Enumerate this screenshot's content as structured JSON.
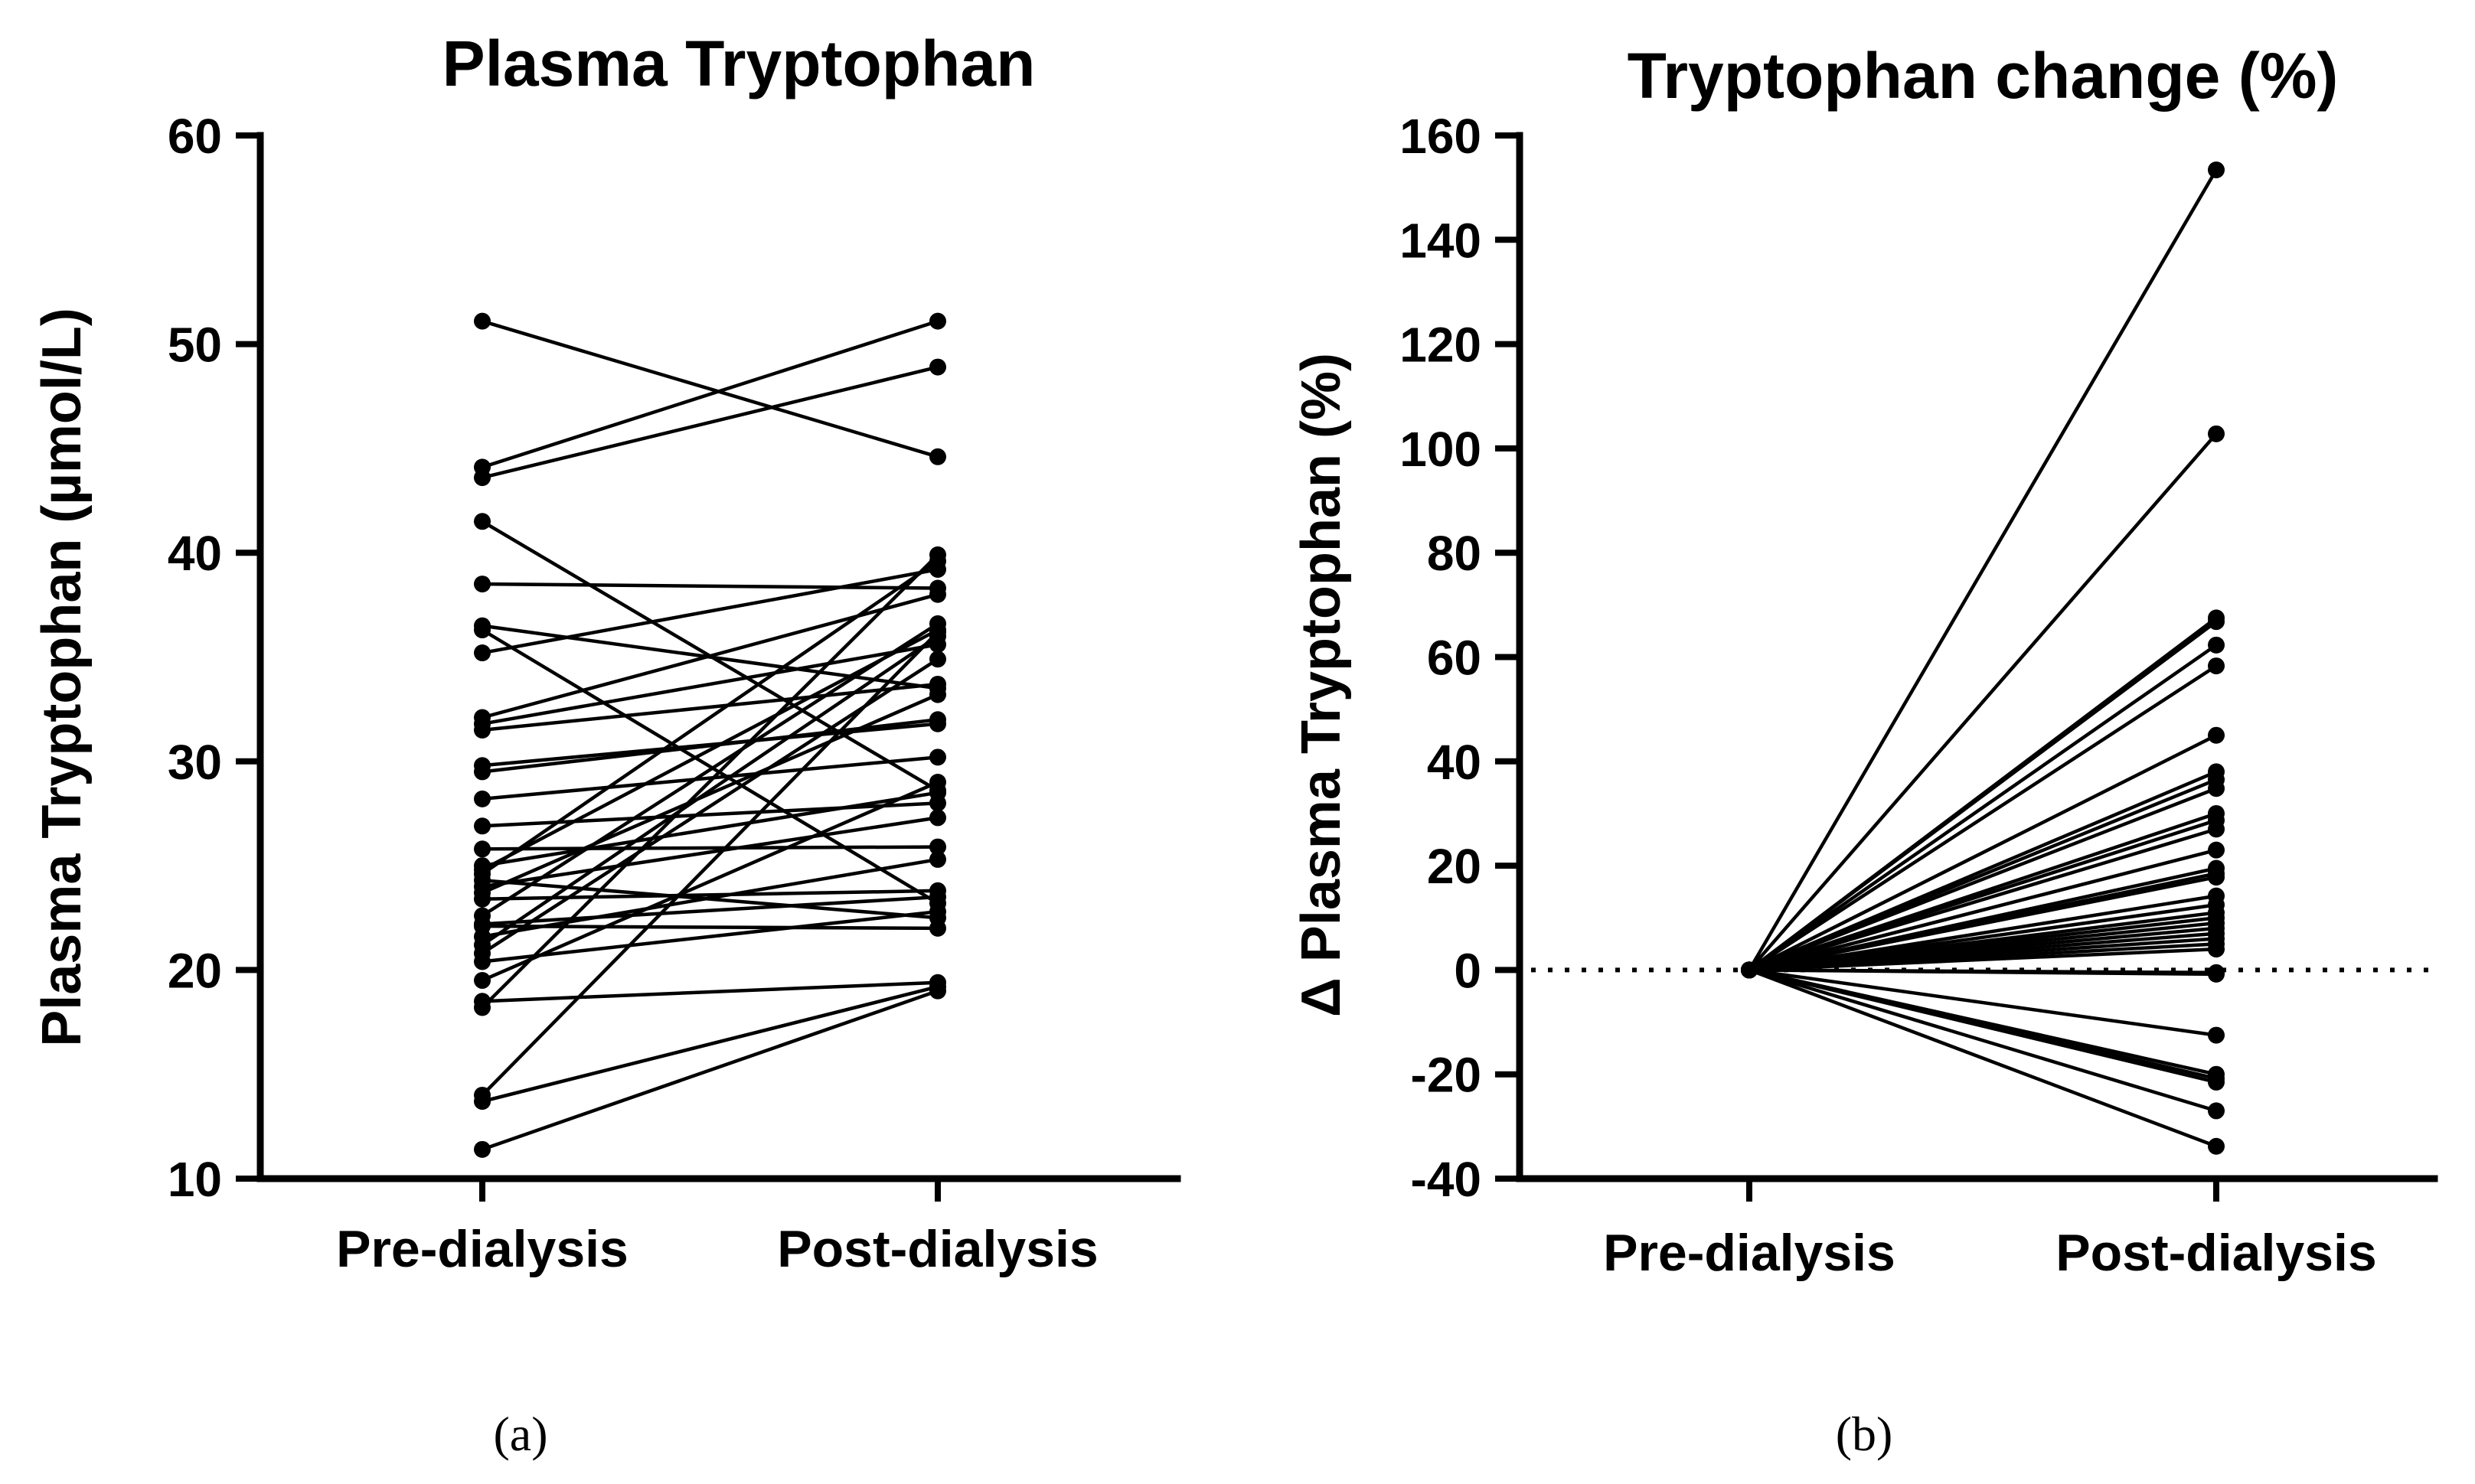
{
  "chart_data": [
    {
      "panel": "a",
      "type": "line",
      "title": "Plasma Tryptophan",
      "xlabel": "",
      "ylabel": "Plasma Tryptophan (µmol/L)",
      "categories": [
        "Pre-dialysis",
        "Post-dialysis"
      ],
      "ylim": [
        10,
        60
      ],
      "yticks": [
        10,
        20,
        30,
        40,
        50,
        60
      ],
      "caption": "(a)",
      "pairs": [
        [
          51.1,
          44.6
        ],
        [
          44.1,
          51.1
        ],
        [
          43.6,
          48.9
        ],
        [
          41.5,
          28.6
        ],
        [
          38.5,
          38.3
        ],
        [
          36.5,
          33.5
        ],
        [
          36.3,
          23.2
        ],
        [
          35.2,
          39.2
        ],
        [
          32.1,
          38.0
        ],
        [
          31.8,
          35.6
        ],
        [
          31.5,
          33.7
        ],
        [
          29.8,
          31.8
        ],
        [
          29.5,
          32.0
        ],
        [
          28.2,
          30.2
        ],
        [
          26.9,
          28.0
        ],
        [
          25.8,
          25.9
        ],
        [
          25.0,
          28.5
        ],
        [
          24.8,
          36.3
        ],
        [
          24.6,
          39.6
        ],
        [
          24.3,
          22.5
        ],
        [
          24.0,
          27.3
        ],
        [
          23.7,
          33.2
        ],
        [
          23.4,
          23.8
        ],
        [
          22.6,
          36.6
        ],
        [
          22.2,
          23.5
        ],
        [
          22.1,
          22.0
        ],
        [
          21.6,
          25.3
        ],
        [
          21.2,
          36.0
        ],
        [
          20.8,
          34.9
        ],
        [
          20.4,
          22.8
        ],
        [
          19.5,
          29.0
        ],
        [
          18.5,
          19.4
        ],
        [
          18.2,
          39.9
        ],
        [
          14.0,
          36.2
        ],
        [
          13.7,
          19.2
        ],
        [
          11.4,
          19.0
        ]
      ]
    },
    {
      "panel": "b",
      "type": "line",
      "title": "Tryptophan change  (%)",
      "xlabel": "",
      "ylabel": "Δ Plasma Tryptophan (%)",
      "categories": [
        "Pre-dialysis",
        "Post-dialysis"
      ],
      "ylim": [
        -40,
        160
      ],
      "yticks": [
        -40,
        -20,
        0,
        20,
        40,
        60,
        80,
        100,
        120,
        140,
        160
      ],
      "reference_line": 0,
      "caption": "(b)",
      "pairs": [
        [
          0,
          153.4
        ],
        [
          0,
          102.8
        ],
        [
          0,
          67.5
        ],
        [
          0,
          66.8
        ],
        [
          0,
          62.3
        ],
        [
          0,
          58.3
        ],
        [
          0,
          45.0
        ],
        [
          0,
          38.0
        ],
        [
          0,
          36.5
        ],
        [
          0,
          34.8
        ],
        [
          0,
          30.0
        ],
        [
          0,
          28.7
        ],
        [
          0,
          27.0
        ],
        [
          0,
          23.0
        ],
        [
          0,
          19.5
        ],
        [
          0,
          18.5
        ],
        [
          0,
          17.8
        ],
        [
          0,
          14.2
        ],
        [
          0,
          12.5
        ],
        [
          0,
          11.0
        ],
        [
          0,
          10.0
        ],
        [
          0,
          9.0
        ],
        [
          0,
          8.0
        ],
        [
          0,
          7.0
        ],
        [
          0,
          6.0
        ],
        [
          0,
          5.0
        ],
        [
          0,
          4.0
        ],
        [
          0,
          -0.5
        ],
        [
          0,
          -0.8
        ],
        [
          0,
          -12.5
        ],
        [
          0,
          -20.0
        ],
        [
          0,
          -20.8
        ],
        [
          0,
          -21.5
        ],
        [
          0,
          -27.0
        ],
        [
          0,
          -33.8
        ]
      ]
    }
  ]
}
